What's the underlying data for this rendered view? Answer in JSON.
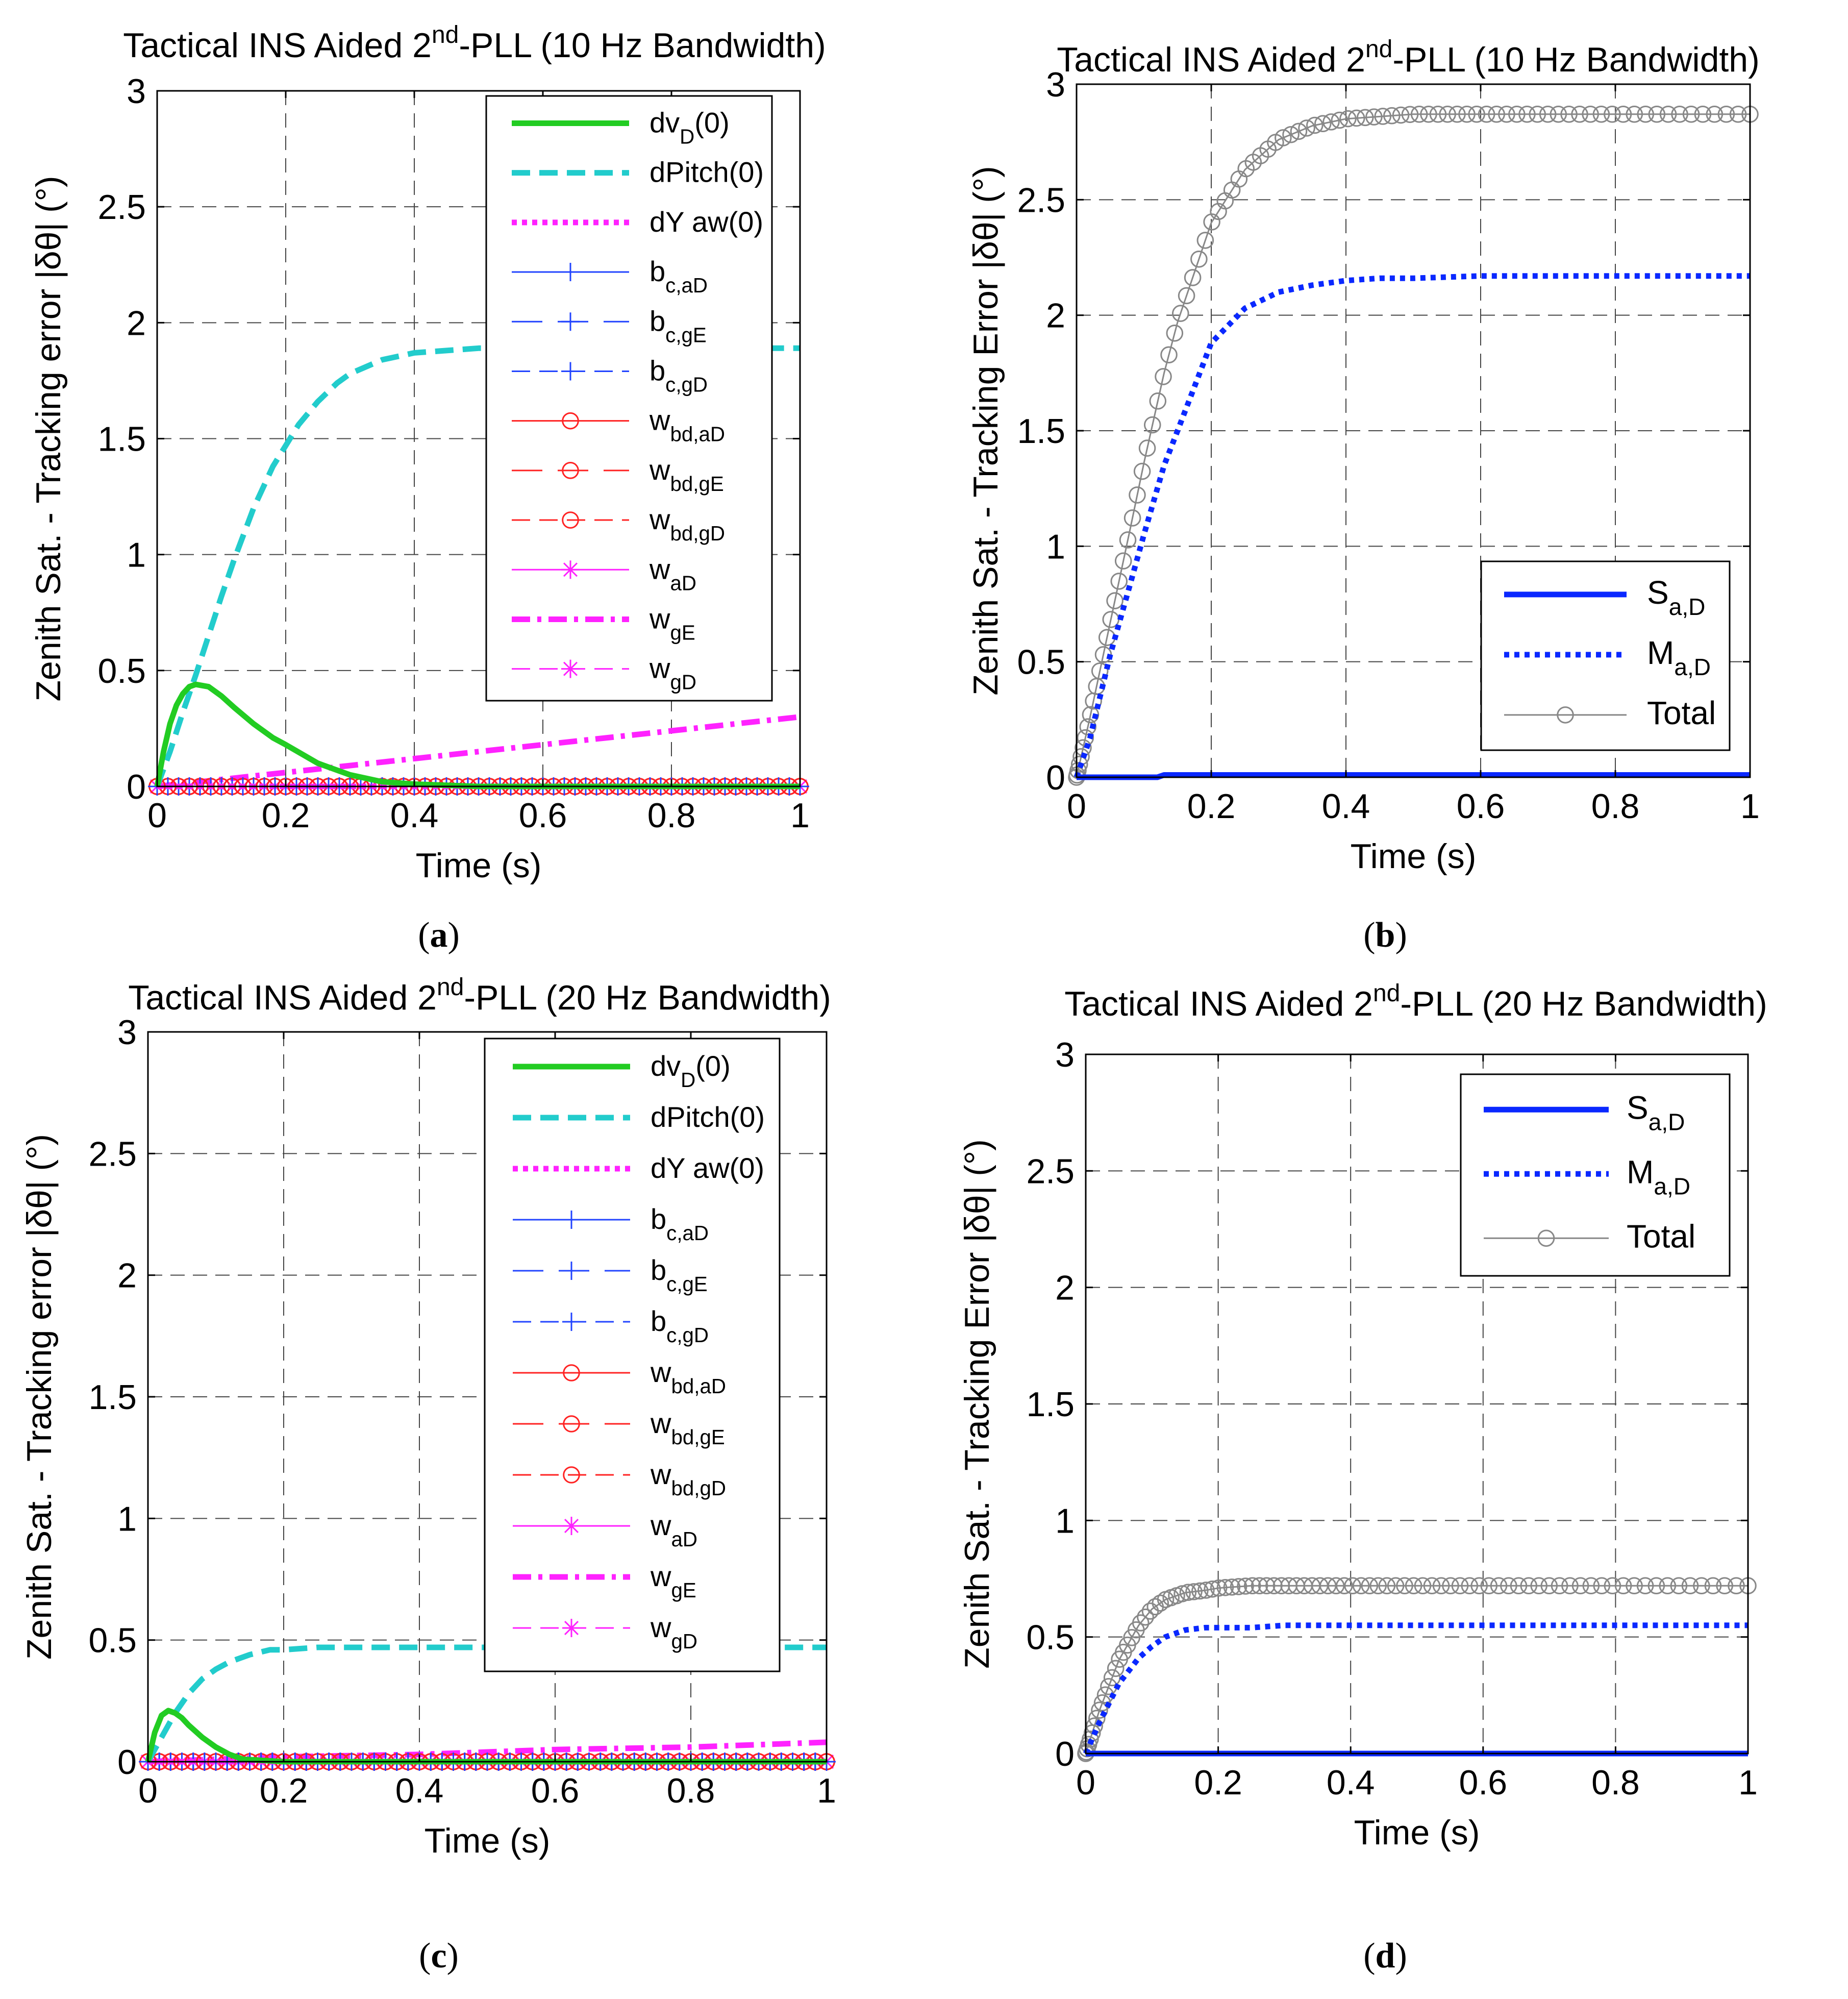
{
  "chart_data": [
    {
      "id": "a",
      "type": "line",
      "caption": "a",
      "title": {
        "pre": "Tactical INS Aided 2",
        "sup": "nd",
        "post": "-PLL (10 Hz Bandwidth)"
      },
      "xlabel": "Time (s)",
      "ylabel": "Zenith Sat. - Tracking error |δθ| (°)",
      "xlim": [
        0,
        1
      ],
      "ylim": [
        0,
        3
      ],
      "xticks": [
        0,
        0.2,
        0.4,
        0.6,
        0.8,
        1
      ],
      "xtick_labels": [
        "0",
        "0.2",
        "0.4",
        "0.6",
        "0.8",
        "1"
      ],
      "yticks": [
        0,
        0.5,
        1,
        1.5,
        2,
        2.5,
        3
      ],
      "ytick_labels": [
        "0",
        "0.5",
        "1",
        "1.5",
        "2",
        "2.5",
        "3"
      ],
      "grid": true,
      "legend_position": "top-right",
      "series": [
        {
          "name": "dvD(0)",
          "label": "dv",
          "sub": "D",
          "after": "(0)",
          "color": "#22cc22",
          "style": "solid",
          "width": "thick",
          "marker": "none",
          "x": [
            0,
            0.01,
            0.02,
            0.03,
            0.04,
            0.05,
            0.06,
            0.08,
            0.1,
            0.12,
            0.15,
            0.18,
            0.2,
            0.25,
            0.3,
            0.35,
            0.4,
            0.5,
            0.6,
            0.8,
            1.0
          ],
          "y": [
            0,
            0.15,
            0.27,
            0.35,
            0.4,
            0.43,
            0.44,
            0.43,
            0.39,
            0.34,
            0.27,
            0.21,
            0.18,
            0.1,
            0.05,
            0.02,
            0.01,
            0,
            0,
            0,
            0
          ]
        },
        {
          "name": "dPitch(0)",
          "label": "dPitch(0)",
          "color": "#22cccc",
          "style": "dashed",
          "width": "thick",
          "marker": "none",
          "x": [
            0,
            0.02,
            0.04,
            0.06,
            0.08,
            0.1,
            0.12,
            0.15,
            0.18,
            0.2,
            0.22,
            0.25,
            0.28,
            0.3,
            0.35,
            0.4,
            0.45,
            0.5,
            0.6,
            0.8,
            1.0
          ],
          "y": [
            0,
            0.15,
            0.32,
            0.48,
            0.65,
            0.82,
            0.98,
            1.2,
            1.38,
            1.47,
            1.56,
            1.66,
            1.74,
            1.78,
            1.84,
            1.87,
            1.88,
            1.89,
            1.89,
            1.89,
            1.89
          ]
        },
        {
          "name": "dYaw(0)",
          "label": "dY aw(0)",
          "color": "#ff22ff",
          "style": "dotted",
          "width": "thick",
          "marker": "none",
          "x": [
            0,
            1
          ],
          "y": [
            0,
            0
          ]
        },
        {
          "name": "bc,aD",
          "label": "b",
          "sub": "c,aD",
          "color": "#2244ff",
          "style": "solid",
          "width": "thin",
          "marker": "plus",
          "x": [
            0,
            1
          ],
          "y": [
            0,
            0
          ]
        },
        {
          "name": "bc,gE",
          "label": "b",
          "sub": "c,gE",
          "color": "#2244ff",
          "style": "longdash",
          "width": "thin",
          "marker": "plus",
          "x": [
            0,
            1
          ],
          "y": [
            0,
            0
          ]
        },
        {
          "name": "bc,gD",
          "label": "b",
          "sub": "c,gD",
          "color": "#2244ff",
          "style": "dashed",
          "width": "thin",
          "marker": "plus",
          "x": [
            0,
            1
          ],
          "y": [
            0,
            0
          ]
        },
        {
          "name": "wbd,aD",
          "label": "w",
          "sub": "bd,aD",
          "color": "#ff2222",
          "style": "solid",
          "width": "thin",
          "marker": "circle",
          "x": [
            0,
            0.02,
            0.04,
            0.06,
            0.08,
            0.1,
            0.12,
            0.14,
            0.16,
            0.2,
            0.3,
            0.4,
            0.5,
            0.6,
            0.7,
            0.8,
            0.9,
            1.0
          ],
          "y": [
            0,
            0,
            0,
            0,
            0,
            0,
            0,
            0,
            0,
            0,
            0,
            0,
            0,
            0,
            0,
            0,
            0,
            0
          ]
        },
        {
          "name": "wbd,gE",
          "label": "w",
          "sub": "bd,gE",
          "color": "#ff2222",
          "style": "longdash",
          "width": "thin",
          "marker": "circle",
          "x": [
            0,
            1
          ],
          "y": [
            0,
            0
          ]
        },
        {
          "name": "wbd,gD",
          "label": "w",
          "sub": "bd,gD",
          "color": "#ff2222",
          "style": "dashed",
          "width": "thin",
          "marker": "circle",
          "x": [
            0,
            1
          ],
          "y": [
            0,
            0
          ]
        },
        {
          "name": "waD",
          "label": "w",
          "sub": "aD",
          "color": "#ff22ff",
          "style": "solid",
          "width": "thin",
          "marker": "star",
          "x": [
            0,
            1
          ],
          "y": [
            0,
            0
          ]
        },
        {
          "name": "wgE",
          "label": "w",
          "sub": "gE",
          "color": "#ff22ff",
          "style": "dashdot",
          "width": "thick",
          "marker": "none",
          "x": [
            0,
            0.1,
            0.2,
            0.3,
            0.4,
            0.5,
            0.6,
            0.7,
            0.8,
            0.9,
            1.0
          ],
          "y": [
            0,
            0.03,
            0.06,
            0.09,
            0.12,
            0.15,
            0.18,
            0.21,
            0.24,
            0.27,
            0.3
          ]
        },
        {
          "name": "wgD",
          "label": "w",
          "sub": "gD",
          "color": "#ff22ff",
          "style": "dashed",
          "width": "thin",
          "marker": "star",
          "x": [
            0,
            1
          ],
          "y": [
            0,
            0
          ]
        }
      ]
    },
    {
      "id": "b",
      "type": "line",
      "caption": "b",
      "title": {
        "pre": "Tactical INS Aided 2",
        "sup": "nd",
        "post": "-PLL (10 Hz Bandwidth)"
      },
      "xlabel": "Time (s)",
      "ylabel": "Zenith Sat. - Tracking Error |δθ| (°)",
      "xlim": [
        0,
        1
      ],
      "ylim": [
        0,
        3
      ],
      "xticks": [
        0,
        0.2,
        0.4,
        0.6,
        0.8,
        1
      ],
      "xtick_labels": [
        "0",
        "0.2",
        "0.4",
        "0.6",
        "0.8",
        "1"
      ],
      "yticks": [
        0,
        0.5,
        1,
        1.5,
        2,
        2.5,
        3
      ],
      "ytick_labels": [
        "0",
        "0.5",
        "1",
        "1.5",
        "2",
        "2.5",
        "3"
      ],
      "grid": true,
      "legend_position": "bottom-right",
      "series": [
        {
          "name": "Sa,D",
          "label": "S",
          "sub": "a,D",
          "color": "#0a28ff",
          "style": "solid",
          "width": "thick",
          "marker": "none",
          "x": [
            0,
            0.12,
            0.13,
            1.0
          ],
          "y": [
            0,
            0,
            0.01,
            0.01
          ]
        },
        {
          "name": "Ma,D",
          "label": "M",
          "sub": "a,D",
          "color": "#0a28ff",
          "style": "dotted",
          "width": "thick",
          "marker": "none",
          "x": [
            0,
            0.02,
            0.05,
            0.08,
            0.1,
            0.13,
            0.15,
            0.2,
            0.25,
            0.3,
            0.35,
            0.4,
            0.45,
            0.5,
            0.6,
            0.8,
            1.0
          ],
          "y": [
            0,
            0.17,
            0.53,
            0.84,
            1.05,
            1.35,
            1.5,
            1.88,
            2.03,
            2.1,
            2.13,
            2.15,
            2.16,
            2.16,
            2.17,
            2.17,
            2.17
          ]
        },
        {
          "name": "Total",
          "label": "Total",
          "color": "#888888",
          "style": "solid",
          "width": "thin",
          "marker": "circle",
          "x": [
            0,
            0.02,
            0.05,
            0.08,
            0.1,
            0.13,
            0.15,
            0.2,
            0.25,
            0.3,
            0.35,
            0.4,
            0.45,
            0.5,
            0.6,
            0.8,
            1.0
          ],
          "y": [
            0,
            0.26,
            0.67,
            1.08,
            1.36,
            1.75,
            1.97,
            2.4,
            2.63,
            2.76,
            2.82,
            2.85,
            2.86,
            2.87,
            2.87,
            2.87,
            2.87
          ]
        }
      ]
    },
    {
      "id": "c",
      "type": "line",
      "caption": "c",
      "title": {
        "pre": "Tactical INS Aided 2",
        "sup": "nd",
        "post": "-PLL (20 Hz Bandwidth)"
      },
      "xlabel": "Time (s)",
      "ylabel": "Zenith Sat. - Tracking error |δθ| (°)",
      "xlim": [
        0,
        1
      ],
      "ylim": [
        0,
        3
      ],
      "xticks": [
        0,
        0.2,
        0.4,
        0.6,
        0.8,
        1
      ],
      "xtick_labels": [
        "0",
        "0.2",
        "0.4",
        "0.6",
        "0.8",
        "1"
      ],
      "yticks": [
        0,
        0.5,
        1,
        1.5,
        2,
        2.5,
        3
      ],
      "ytick_labels": [
        "0",
        "0.5",
        "1",
        "1.5",
        "2",
        "2.5",
        "3"
      ],
      "grid": true,
      "legend_position": "top-right",
      "series": [
        {
          "name": "dvD(0)",
          "label": "dv",
          "sub": "D",
          "after": "(0)",
          "color": "#22cc22",
          "style": "solid",
          "width": "thick",
          "marker": "none",
          "x": [
            0,
            0.01,
            0.02,
            0.03,
            0.04,
            0.05,
            0.06,
            0.08,
            0.1,
            0.12,
            0.14,
            0.2,
            0.3,
            1.0
          ],
          "y": [
            0,
            0.12,
            0.19,
            0.21,
            0.2,
            0.18,
            0.15,
            0.1,
            0.06,
            0.03,
            0.01,
            0,
            0,
            0
          ]
        },
        {
          "name": "dPitch(0)",
          "label": "dPitch(0)",
          "color": "#22cccc",
          "style": "dashed",
          "width": "thick",
          "marker": "none",
          "x": [
            0,
            0.02,
            0.04,
            0.06,
            0.08,
            0.1,
            0.12,
            0.15,
            0.18,
            0.2,
            0.25,
            0.3,
            0.5,
            1.0
          ],
          "y": [
            0,
            0.1,
            0.2,
            0.28,
            0.34,
            0.38,
            0.41,
            0.44,
            0.46,
            0.46,
            0.47,
            0.47,
            0.47,
            0.47
          ]
        },
        {
          "name": "dYaw(0)",
          "label": "dY aw(0)",
          "color": "#ff22ff",
          "style": "dotted",
          "width": "thick",
          "marker": "none",
          "x": [
            0,
            1
          ],
          "y": [
            0,
            0
          ]
        },
        {
          "name": "bc,aD",
          "label": "b",
          "sub": "c,aD",
          "color": "#2244ff",
          "style": "solid",
          "width": "thin",
          "marker": "plus",
          "x": [
            0,
            1
          ],
          "y": [
            0,
            0
          ]
        },
        {
          "name": "bc,gE",
          "label": "b",
          "sub": "c,gE",
          "color": "#2244ff",
          "style": "longdash",
          "width": "thin",
          "marker": "plus",
          "x": [
            0,
            1
          ],
          "y": [
            0,
            0
          ]
        },
        {
          "name": "bc,gD",
          "label": "b",
          "sub": "c,gD",
          "color": "#2244ff",
          "style": "dashed",
          "width": "thin",
          "marker": "plus",
          "x": [
            0,
            1
          ],
          "y": [
            0,
            0
          ]
        },
        {
          "name": "wbd,aD",
          "label": "w",
          "sub": "bd,aD",
          "color": "#ff2222",
          "style": "solid",
          "width": "thin",
          "marker": "circle",
          "x": [
            0,
            0.02,
            0.04,
            0.06,
            0.08,
            0.1,
            0.12,
            0.2,
            0.3,
            0.4,
            0.5,
            0.6,
            0.7,
            0.8,
            0.9,
            1.0
          ],
          "y": [
            0,
            0,
            0,
            0,
            0,
            0,
            0,
            0,
            0,
            0,
            0,
            0,
            0,
            0,
            0,
            0
          ]
        },
        {
          "name": "wbd,gE",
          "label": "w",
          "sub": "bd,gE",
          "color": "#ff2222",
          "style": "longdash",
          "width": "thin",
          "marker": "circle",
          "x": [
            0,
            1
          ],
          "y": [
            0,
            0
          ]
        },
        {
          "name": "wbd,gD",
          "label": "w",
          "sub": "bd,gD",
          "color": "#ff2222",
          "style": "dashed",
          "width": "thin",
          "marker": "circle",
          "x": [
            0,
            1
          ],
          "y": [
            0,
            0
          ]
        },
        {
          "name": "waD",
          "label": "w",
          "sub": "aD",
          "color": "#ff22ff",
          "style": "solid",
          "width": "thin",
          "marker": "star",
          "x": [
            0,
            1
          ],
          "y": [
            0,
            0
          ]
        },
        {
          "name": "wgE",
          "label": "w",
          "sub": "gE",
          "color": "#ff22ff",
          "style": "dashdot",
          "width": "thick",
          "marker": "none",
          "x": [
            0,
            0.2,
            0.4,
            0.6,
            0.8,
            1.0
          ],
          "y": [
            0,
            0.02,
            0.03,
            0.05,
            0.06,
            0.08
          ]
        },
        {
          "name": "wgD",
          "label": "w",
          "sub": "gD",
          "color": "#ff22ff",
          "style": "dashed",
          "width": "thin",
          "marker": "star",
          "x": [
            0,
            1
          ],
          "y": [
            0,
            0
          ]
        }
      ]
    },
    {
      "id": "d",
      "type": "line",
      "caption": "d",
      "title": {
        "pre": "Tactical INS Aided 2",
        "sup": "nd",
        "post": "-PLL (20 Hz Bandwidth)"
      },
      "xlabel": "Time (s)",
      "ylabel": "Zenith Sat. - Tracking Error |δθ| (°)",
      "xlim": [
        0,
        1
      ],
      "ylim": [
        0,
        3
      ],
      "xticks": [
        0,
        0.2,
        0.4,
        0.6,
        0.8,
        1
      ],
      "xtick_labels": [
        "0",
        "0.2",
        "0.4",
        "0.6",
        "0.8",
        "1"
      ],
      "yticks": [
        0,
        0.5,
        1,
        1.5,
        2,
        2.5,
        3
      ],
      "ytick_labels": [
        "0",
        "0.5",
        "1",
        "1.5",
        "2",
        "2.5",
        "3"
      ],
      "grid": true,
      "legend_position": "top-right",
      "series": [
        {
          "name": "Sa,D",
          "label": "S",
          "sub": "a,D",
          "color": "#0a28ff",
          "style": "solid",
          "width": "thick",
          "marker": "none",
          "x": [
            0,
            1.0
          ],
          "y": [
            0,
            0
          ]
        },
        {
          "name": "Ma,D",
          "label": "M",
          "sub": "a,D",
          "color": "#0a28ff",
          "style": "dotted",
          "width": "thick",
          "marker": "none",
          "x": [
            0,
            0.02,
            0.05,
            0.08,
            0.1,
            0.12,
            0.15,
            0.18,
            0.2,
            0.25,
            0.3,
            1.0
          ],
          "y": [
            0,
            0.13,
            0.3,
            0.41,
            0.46,
            0.5,
            0.53,
            0.54,
            0.54,
            0.54,
            0.55,
            0.55
          ]
        },
        {
          "name": "Total",
          "label": "Total",
          "color": "#888888",
          "style": "solid",
          "width": "thin",
          "marker": "circle",
          "x": [
            0,
            0.02,
            0.05,
            0.08,
            0.1,
            0.12,
            0.15,
            0.18,
            0.2,
            0.25,
            0.3,
            1.0
          ],
          "y": [
            0,
            0.18,
            0.4,
            0.55,
            0.62,
            0.66,
            0.69,
            0.7,
            0.71,
            0.72,
            0.72,
            0.72
          ]
        }
      ]
    }
  ]
}
